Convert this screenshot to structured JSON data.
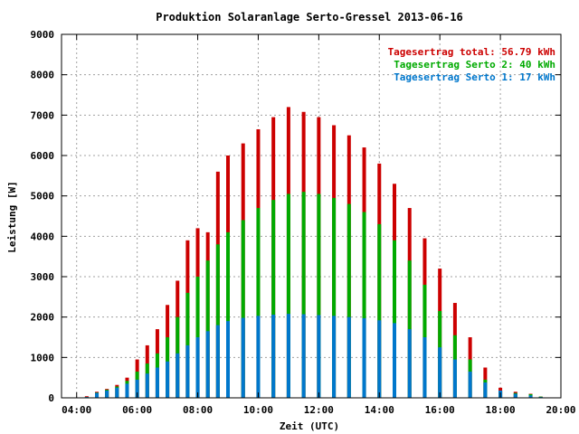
{
  "chart_data": {
    "type": "bar",
    "title": "Produktion Solaranlage Serto-Gressel 2013-06-16",
    "xlabel": "Zeit (UTC)",
    "ylabel": "Leistung [W]",
    "xlim": [
      "03:30",
      "20:00"
    ],
    "ylim": [
      0,
      9000
    ],
    "xticks": [
      "04:00",
      "06:00",
      "08:00",
      "10:00",
      "12:00",
      "14:00",
      "16:00",
      "18:00",
      "20:00"
    ],
    "yticks": [
      "0",
      "1000",
      "2000",
      "3000",
      "4000",
      "5000",
      "6000",
      "7000",
      "8000",
      "9000"
    ],
    "grid": true,
    "legend_position": "top-right",
    "legend": [
      {
        "text": "Tagesertrag total: 56.79 kWh",
        "color": "#cc0000"
      },
      {
        "text": "Tagesertrag Serto 2: 40 kWh",
        "color": "#00aa00"
      },
      {
        "text": "Tagesertrag Serto 1: 17 kWh",
        "color": "#0077cc"
      }
    ],
    "series": [
      {
        "name": "Serto 1",
        "color": "#0077cc",
        "points": [
          [
            "04:00",
            5
          ],
          [
            "04:20",
            20
          ],
          [
            "04:40",
            120
          ],
          [
            "05:00",
            180
          ],
          [
            "05:20",
            250
          ],
          [
            "05:40",
            350
          ],
          [
            "06:00",
            450
          ],
          [
            "06:20",
            600
          ],
          [
            "06:40",
            750
          ],
          [
            "07:00",
            900
          ],
          [
            "07:20",
            1100
          ],
          [
            "07:40",
            1300
          ],
          [
            "08:00",
            1500
          ],
          [
            "08:20",
            1650
          ],
          [
            "08:40",
            1800
          ],
          [
            "09:00",
            1900
          ],
          [
            "09:30",
            1980
          ],
          [
            "10:00",
            2030
          ],
          [
            "10:30",
            2060
          ],
          [
            "11:00",
            2080
          ],
          [
            "11:30",
            2070
          ],
          [
            "12:00",
            2050
          ],
          [
            "12:30",
            2030
          ],
          [
            "13:00",
            2000
          ],
          [
            "13:30",
            1970
          ],
          [
            "14:00",
            1920
          ],
          [
            "14:30",
            1850
          ],
          [
            "15:00",
            1700
          ],
          [
            "15:30",
            1500
          ],
          [
            "16:00",
            1250
          ],
          [
            "16:30",
            950
          ],
          [
            "17:00",
            650
          ],
          [
            "17:30",
            380
          ],
          [
            "18:00",
            180
          ],
          [
            "18:30",
            100
          ],
          [
            "19:00",
            60
          ],
          [
            "19:20",
            20
          ],
          [
            "19:30",
            0
          ]
        ]
      },
      {
        "name": "Serto 2",
        "color": "#00aa00",
        "points": [
          [
            "04:00",
            5
          ],
          [
            "04:20",
            20
          ],
          [
            "04:40",
            130
          ],
          [
            "05:00",
            200
          ],
          [
            "05:20",
            280
          ],
          [
            "05:40",
            420
          ],
          [
            "06:00",
            650
          ],
          [
            "06:20",
            850
          ],
          [
            "06:40",
            1100
          ],
          [
            "07:00",
            1500
          ],
          [
            "07:20",
            2000
          ],
          [
            "07:40",
            2600
          ],
          [
            "08:00",
            3000
          ],
          [
            "08:20",
            3400
          ],
          [
            "08:40",
            3800
          ],
          [
            "09:00",
            4100
          ],
          [
            "09:30",
            4400
          ],
          [
            "10:00",
            4700
          ],
          [
            "10:30",
            4900
          ],
          [
            "11:00",
            5050
          ],
          [
            "11:30",
            5100
          ],
          [
            "12:00",
            5050
          ],
          [
            "12:30",
            4950
          ],
          [
            "13:00",
            4800
          ],
          [
            "13:30",
            4600
          ],
          [
            "14:00",
            4300
          ],
          [
            "14:30",
            3900
          ],
          [
            "15:00",
            3400
          ],
          [
            "15:30",
            2800
          ],
          [
            "16:00",
            2150
          ],
          [
            "16:30",
            1550
          ],
          [
            "17:00",
            950
          ],
          [
            "17:30",
            450
          ],
          [
            "18:00",
            170
          ],
          [
            "18:30",
            120
          ],
          [
            "19:00",
            90
          ],
          [
            "19:20",
            30
          ],
          [
            "19:30",
            0
          ]
        ]
      },
      {
        "name": "total",
        "color": "#cc0000",
        "points": [
          [
            "04:00",
            10
          ],
          [
            "04:20",
            40
          ],
          [
            "04:40",
            150
          ],
          [
            "05:00",
            220
          ],
          [
            "05:20",
            320
          ],
          [
            "05:40",
            500
          ],
          [
            "06:00",
            950
          ],
          [
            "06:20",
            1300
          ],
          [
            "06:40",
            1700
          ],
          [
            "07:00",
            2300
          ],
          [
            "07:20",
            2900
          ],
          [
            "07:40",
            3900
          ],
          [
            "08:00",
            4200
          ],
          [
            "08:20",
            4100
          ],
          [
            "08:40",
            5600
          ],
          [
            "09:00",
            6000
          ],
          [
            "09:30",
            6300
          ],
          [
            "10:00",
            6650
          ],
          [
            "10:30",
            6950
          ],
          [
            "11:00",
            7200
          ],
          [
            "11:30",
            7080
          ],
          [
            "12:00",
            6950
          ],
          [
            "12:30",
            6750
          ],
          [
            "13:00",
            6500
          ],
          [
            "13:30",
            6200
          ],
          [
            "14:00",
            5800
          ],
          [
            "14:30",
            5300
          ],
          [
            "15:00",
            4700
          ],
          [
            "15:30",
            3950
          ],
          [
            "16:00",
            3200
          ],
          [
            "16:30",
            2350
          ],
          [
            "17:00",
            1500
          ],
          [
            "17:30",
            750
          ],
          [
            "18:00",
            250
          ],
          [
            "18:30",
            150
          ],
          [
            "19:00",
            100
          ],
          [
            "19:20",
            30
          ],
          [
            "19:30",
            0
          ]
        ]
      }
    ]
  }
}
